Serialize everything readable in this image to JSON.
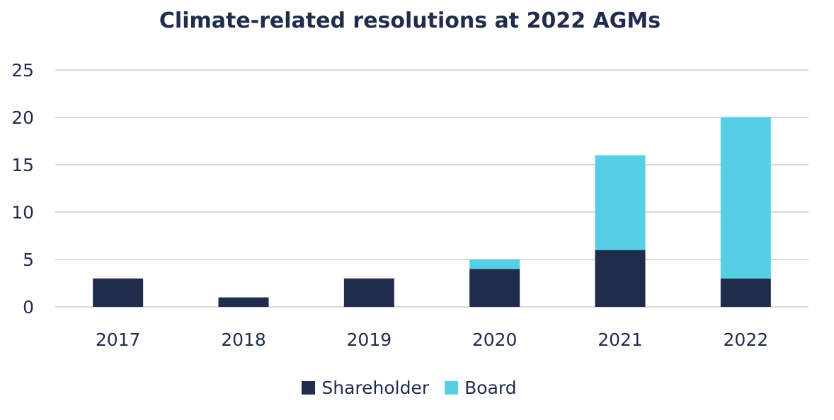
{
  "chart_data": {
    "type": "bar",
    "stacked": true,
    "title": "Climate-related resolutions at 2022 AGMs",
    "categories": [
      "2017",
      "2018",
      "2019",
      "2020",
      "2021",
      "2022"
    ],
    "series": [
      {
        "name": "Shareholder",
        "color": "#1f2c4c",
        "values": [
          3,
          1,
          3,
          4,
          6,
          3
        ]
      },
      {
        "name": "Board",
        "color": "#56cfe6",
        "values": [
          0,
          0,
          0,
          1,
          10,
          17
        ]
      }
    ],
    "yticks": [
      "0",
      "5",
      "10",
      "15",
      "20",
      "25"
    ],
    "ylim": [
      0,
      25
    ],
    "grid": true,
    "legend_position": "bottom"
  }
}
